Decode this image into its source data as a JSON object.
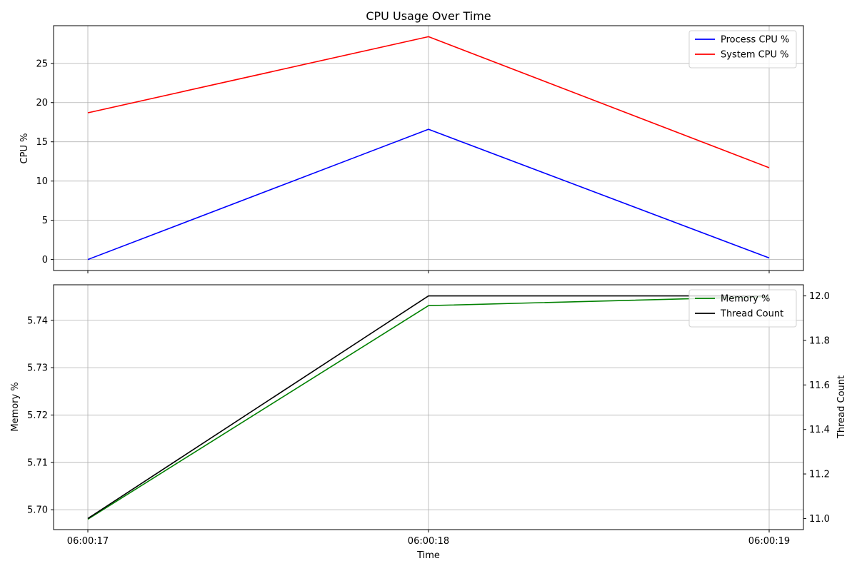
{
  "chart_data": [
    {
      "type": "line",
      "title": "CPU Usage Over Time",
      "xlabel": "",
      "ylabel": "CPU %",
      "categories": [
        "06:00:17",
        "06:00:18",
        "06:00:19"
      ],
      "x_tick_labels_visible": false,
      "ylim": [
        -1.4,
        29.8
      ],
      "yticks": [
        0,
        5,
        10,
        15,
        20,
        25
      ],
      "grid": true,
      "legend_position": "top-right",
      "series": [
        {
          "name": "Process CPU %",
          "color": "#0000ff",
          "values": [
            0.0,
            16.6,
            0.2
          ]
        },
        {
          "name": "System CPU %",
          "color": "#ff0000",
          "values": [
            18.7,
            28.4,
            11.7
          ]
        }
      ]
    },
    {
      "type": "line",
      "title": "",
      "xlabel": "Time",
      "ylabel": "Memory %",
      "y2label": "Thread Count",
      "categories": [
        "06:00:17",
        "06:00:18",
        "06:00:19"
      ],
      "x_tick_labels_visible": true,
      "ylim": [
        5.6958,
        5.7475
      ],
      "yticks": [
        5.7,
        5.71,
        5.72,
        5.73,
        5.74
      ],
      "ytick_labels": [
        "5.70",
        "5.71",
        "5.72",
        "5.73",
        "5.74"
      ],
      "y2lim": [
        10.95,
        12.05
      ],
      "y2ticks": [
        11.0,
        11.2,
        11.4,
        11.6,
        11.8,
        12.0
      ],
      "y2tick_labels": [
        "11.0",
        "11.2",
        "11.4",
        "11.6",
        "11.8",
        "12.0"
      ],
      "grid": true,
      "legend_position": "top-right",
      "series": [
        {
          "name": "Memory %",
          "color": "#008000",
          "axis": "left",
          "values": [
            5.698,
            5.7431,
            5.745
          ]
        },
        {
          "name": "Thread Count",
          "color": "#000000",
          "axis": "right",
          "values": [
            11,
            12,
            12
          ]
        }
      ]
    }
  ]
}
